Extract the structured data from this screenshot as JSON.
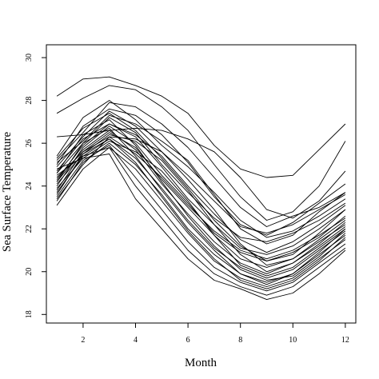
{
  "chart_data": {
    "type": "line",
    "title": "",
    "xlabel": "Month",
    "ylabel": "Sea Surface Temperature",
    "xlim": [
      0.6,
      12.4
    ],
    "ylim": [
      17.6,
      30.6
    ],
    "x_ticks": [
      2,
      4,
      6,
      8,
      10,
      12
    ],
    "y_ticks": [
      18,
      20,
      22,
      24,
      26,
      28,
      30
    ],
    "grid": false,
    "legend": "none",
    "line_color": "#000000",
    "x": [
      1,
      2,
      3,
      4,
      5,
      6,
      7,
      8,
      9,
      10,
      11,
      12
    ],
    "series": [
      {
        "values": [
          28.2,
          29.0,
          29.1,
          28.7,
          28.2,
          27.4,
          25.9,
          24.8,
          24.4,
          24.5,
          25.7,
          26.9
        ]
      },
      {
        "values": [
          27.4,
          28.1,
          28.7,
          28.5,
          27.7,
          26.6,
          25.0,
          23.5,
          22.4,
          22.8,
          24.0,
          26.1
        ]
      },
      {
        "values": [
          26.3,
          26.4,
          26.6,
          26.7,
          26.6,
          26.2,
          25.6,
          24.4,
          22.9,
          22.5,
          23.3,
          24.7
        ]
      },
      {
        "values": [
          25.2,
          26.5,
          27.9,
          27.7,
          26.9,
          25.8,
          24.4,
          23.0,
          22.1,
          22.6,
          23.0,
          23.7
        ]
      },
      {
        "values": [
          25.4,
          27.2,
          28.0,
          27.1,
          25.9,
          24.9,
          23.7,
          22.4,
          21.6,
          21.9,
          22.6,
          23.4
        ]
      },
      {
        "values": [
          24.9,
          26.3,
          27.5,
          26.8,
          25.6,
          24.5,
          23.3,
          22.1,
          21.8,
          22.2,
          22.9,
          23.6
        ]
      },
      {
        "values": [
          25.1,
          26.1,
          27.3,
          26.9,
          26.1,
          25.2,
          23.6,
          22.0,
          21.3,
          21.7,
          22.8,
          23.7
        ]
      },
      {
        "values": [
          24.6,
          26.0,
          27.2,
          26.5,
          25.0,
          23.7,
          22.5,
          21.6,
          21.4,
          21.8,
          22.4,
          23.2
        ]
      },
      {
        "values": [
          24.3,
          25.9,
          26.9,
          26.3,
          24.9,
          23.4,
          22.2,
          21.1,
          20.8,
          21.2,
          22.0,
          22.9
        ]
      },
      {
        "values": [
          24.0,
          25.8,
          26.8,
          26.0,
          24.5,
          23.2,
          21.8,
          20.9,
          20.5,
          20.9,
          21.6,
          22.6
        ]
      },
      {
        "values": [
          23.8,
          25.6,
          26.5,
          25.8,
          24.3,
          23.0,
          21.7,
          20.6,
          20.2,
          20.6,
          21.5,
          22.4
        ]
      },
      {
        "values": [
          24.2,
          25.7,
          26.6,
          25.7,
          24.1,
          22.7,
          21.4,
          20.4,
          19.9,
          20.4,
          21.2,
          22.1
        ]
      },
      {
        "values": [
          23.6,
          25.5,
          26.2,
          25.3,
          23.9,
          22.4,
          21.1,
          20.2,
          19.7,
          20.1,
          21.0,
          21.9
        ]
      },
      {
        "values": [
          23.3,
          25.1,
          26.0,
          25.0,
          23.6,
          22.0,
          20.8,
          19.9,
          19.5,
          19.9,
          20.8,
          21.7
        ]
      },
      {
        "values": [
          23.1,
          24.8,
          25.8,
          24.8,
          23.3,
          21.8,
          20.5,
          19.7,
          19.3,
          19.7,
          20.6,
          21.5
        ]
      },
      {
        "values": [
          23.5,
          25.2,
          25.9,
          24.4,
          22.9,
          21.4,
          20.2,
          19.5,
          19.1,
          19.5,
          20.4,
          21.3
        ]
      },
      {
        "values": [
          24.5,
          25.4,
          25.8,
          24.0,
          22.5,
          21.0,
          19.9,
          19.3,
          18.9,
          19.3,
          20.2,
          21.1
        ]
      },
      {
        "values": [
          24.8,
          25.3,
          25.5,
          23.4,
          22.0,
          20.6,
          19.6,
          19.2,
          18.7,
          19.0,
          19.9,
          21.0
        ]
      },
      {
        "values": [
          24.4,
          25.6,
          26.3,
          25.5,
          24.4,
          23.1,
          21.9,
          21.0,
          20.6,
          21.0,
          21.7,
          22.5
        ]
      },
      {
        "values": [
          24.7,
          26.2,
          26.9,
          26.4,
          25.4,
          24.0,
          22.7,
          21.5,
          20.9,
          21.4,
          22.2,
          23.1
        ]
      },
      {
        "values": [
          25.0,
          26.8,
          27.6,
          27.3,
          26.4,
          25.1,
          23.5,
          22.2,
          21.7,
          22.3,
          23.2,
          24.1
        ]
      },
      {
        "values": [
          24.1,
          25.5,
          26.4,
          26.1,
          25.2,
          23.8,
          22.2,
          20.8,
          20.0,
          20.4,
          21.3,
          22.3
        ]
      },
      {
        "values": [
          23.9,
          25.3,
          26.1,
          25.6,
          24.7,
          23.3,
          21.7,
          20.3,
          19.8,
          20.2,
          21.1,
          22.0
        ]
      },
      {
        "values": [
          24.6,
          26.4,
          27.1,
          25.9,
          24.2,
          22.6,
          21.2,
          20.1,
          19.6,
          19.8,
          20.7,
          21.8
        ]
      },
      {
        "values": [
          25.3,
          26.7,
          27.4,
          26.6,
          25.3,
          23.9,
          22.4,
          21.2,
          20.5,
          20.8,
          21.8,
          22.9
        ]
      },
      {
        "values": [
          24.2,
          26.0,
          26.7,
          25.4,
          23.8,
          22.3,
          21.0,
          19.9,
          19.4,
          19.9,
          20.9,
          22.0
        ]
      },
      {
        "values": [
          23.4,
          25.0,
          26.3,
          26.2,
          25.6,
          24.3,
          22.9,
          21.3,
          20.3,
          20.6,
          21.4,
          22.2
        ]
      },
      {
        "values": [
          23.7,
          25.4,
          26.2,
          25.1,
          23.5,
          21.9,
          20.6,
          19.6,
          19.2,
          19.6,
          20.5,
          21.6
        ]
      }
    ]
  }
}
